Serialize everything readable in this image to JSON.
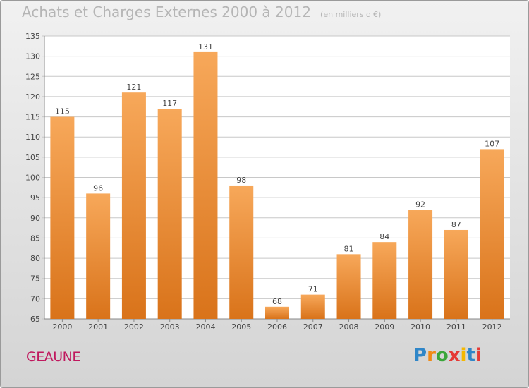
{
  "header": {
    "title": "Achats et Charges Externes 2000 à 2012",
    "subtitle": "(en milliers d'€)"
  },
  "footer": {
    "location": "GEAUNE",
    "logo_text": "Proxiti"
  },
  "colors": {
    "bar_top": "#f7a85a",
    "bar_bottom": "#d9731a",
    "grid": "#c8c8c8",
    "location_text": "#c0185e"
  },
  "chart_data": {
    "type": "bar",
    "title": "Achats et Charges Externes 2000 à 2012",
    "subtitle": "(en milliers d'€)",
    "categories": [
      "2000",
      "2001",
      "2002",
      "2003",
      "2004",
      "2005",
      "2006",
      "2007",
      "2008",
      "2009",
      "2010",
      "2011",
      "2012"
    ],
    "values": [
      115,
      96,
      121,
      117,
      131,
      98,
      68,
      71,
      81,
      84,
      92,
      87,
      107
    ],
    "ylim": [
      65,
      135
    ],
    "yticks": [
      65,
      70,
      75,
      80,
      85,
      90,
      95,
      100,
      105,
      110,
      115,
      120,
      125,
      130,
      135
    ],
    "grid": true,
    "data_labels": true,
    "legend": "none"
  }
}
